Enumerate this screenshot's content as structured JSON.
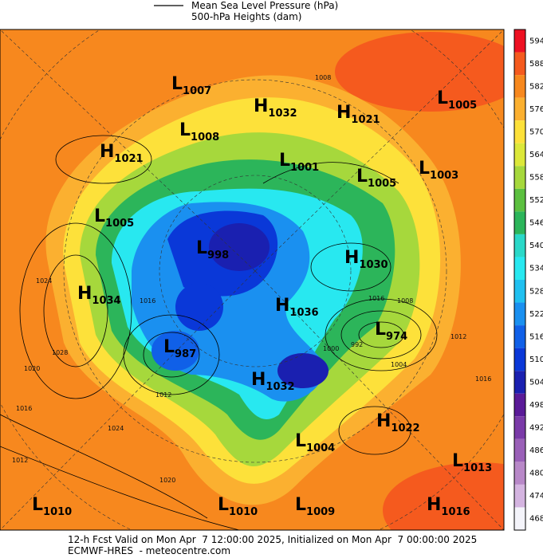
{
  "header": {
    "legend": [
      "Mean Sea Level Pressure (hPa)",
      "500-hPa Heights (dam)"
    ]
  },
  "colorbar": {
    "levels": [
      594,
      588,
      582,
      576,
      570,
      564,
      558,
      552,
      546,
      540,
      534,
      528,
      522,
      516,
      510,
      504,
      498,
      492,
      486,
      480,
      474,
      468
    ],
    "colors": [
      "#ee1122",
      "#f55a1e",
      "#f7881e",
      "#fbb030",
      "#fde13a",
      "#dce83a",
      "#a6d83c",
      "#5cc040",
      "#2cb55a",
      "#2ad8c8",
      "#28e8f0",
      "#20c0f0",
      "#1a90f0",
      "#1060e8",
      "#0a38d8",
      "#1a20b0",
      "#5a1a98",
      "#7a3aa8",
      "#9a60b8",
      "#b888c8",
      "#d4b4e0",
      "#f4f4fa"
    ]
  },
  "centers": [
    {
      "type": "L",
      "value": 1007
    },
    {
      "type": "H",
      "value": 1032
    },
    {
      "type": "H",
      "value": 1021
    },
    {
      "type": "L",
      "value": 1005
    },
    {
      "type": "L",
      "value": 1008
    },
    {
      "type": "H",
      "value": 1021
    },
    {
      "type": "L",
      "value": 1001
    },
    {
      "type": "L",
      "value": 1005
    },
    {
      "type": "L",
      "value": 1003
    },
    {
      "type": "L",
      "value": 1005
    },
    {
      "type": "L",
      "value": 998
    },
    {
      "type": "H",
      "value": 1030
    },
    {
      "type": "H",
      "value": 1034
    },
    {
      "type": "H",
      "value": 1036
    },
    {
      "type": "L",
      "value": 974
    },
    {
      "type": "L",
      "value": 987
    },
    {
      "type": "H",
      "value": 1032
    },
    {
      "type": "H",
      "value": 1022
    },
    {
      "type": "L",
      "value": 1004
    },
    {
      "type": "L",
      "value": 1013
    },
    {
      "type": "L",
      "value": 1010
    },
    {
      "type": "L",
      "value": 1010
    },
    {
      "type": "L",
      "value": 1009
    },
    {
      "type": "H",
      "value": 1016
    }
  ],
  "contour_labels": [
    1008,
    1024,
    1028,
    1020,
    1016,
    1012,
    1020,
    1024,
    1012,
    1016,
    1008,
    992,
    1000,
    1004,
    1012,
    1016,
    1016
  ],
  "footer": [
    "12-h Fcst Valid on Mon Apr  7 12:00:00 2025, Initialized on Mon Apr  7 00:00:00 2025",
    "ECMWF-HRES  - meteocentre.com"
  ]
}
